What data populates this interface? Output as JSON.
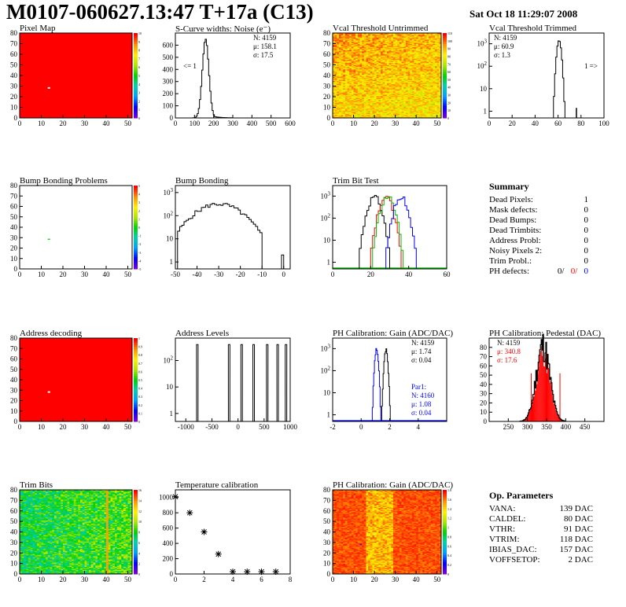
{
  "header": {
    "title": "M0107-060627.13:47 T+17a (C13)",
    "date": "Sat Oct 18 11:29:07 2008"
  },
  "colors": {
    "red": "#ff0000",
    "blue": "#0000ff",
    "green": "#00bb00",
    "black": "#000000"
  },
  "panels": [
    {
      "title": "Pixel Map",
      "chart_data": {
        "type": "heatmap",
        "xlim": [
          0,
          52
        ],
        "ylim": [
          0,
          80
        ],
        "z_range": [
          0,
          10
        ],
        "dominant_z": 10,
        "x_ticks": [
          0,
          10,
          20,
          30,
          40,
          50
        ],
        "y_ticks": [
          0,
          10,
          20,
          30,
          40,
          50,
          60,
          70,
          80
        ],
        "z_ticks": [
          0,
          1,
          2,
          3,
          4,
          5,
          6,
          7,
          8,
          9,
          10
        ],
        "dead_pixels": [
          {
            "x": 13,
            "y": 28
          }
        ]
      }
    },
    {
      "title": "S-Curve widths: Noise (e⁻)",
      "chart_data": {
        "type": "histogram",
        "xlim": [
          0,
          600
        ],
        "ylim": [
          0,
          700
        ],
        "x_ticks": [
          0,
          100,
          200,
          300,
          400,
          500,
          600
        ],
        "y_ticks": [
          0,
          100,
          200,
          300,
          400,
          500,
          600
        ],
        "stats": [
          "N: 4159",
          "μ: 158.1",
          "σ: 17.5"
        ],
        "side_label": "<= 1"
      }
    },
    {
      "title": "Vcal Threshold Untrimmed",
      "chart_data": {
        "type": "heatmap",
        "xlim": [
          0,
          52
        ],
        "ylim": [
          0,
          80
        ],
        "z_range": [
          0,
          110
        ],
        "x_ticks": [
          0,
          10,
          20,
          30,
          40,
          50
        ],
        "y_ticks": [
          0,
          10,
          20,
          30,
          40,
          50,
          60,
          70,
          80
        ],
        "z_ticks": [
          0,
          10,
          20,
          30,
          40,
          50,
          60,
          70,
          80,
          90,
          100,
          110
        ]
      }
    },
    {
      "title": "Vcal Threshold Trimmed",
      "chart_data": {
        "type": "histogram",
        "scale": "log",
        "xlim": [
          0,
          100
        ],
        "x_ticks": [
          0,
          20,
          40,
          60,
          80,
          100
        ],
        "y_ticks": [
          1,
          10,
          100,
          1000
        ],
        "stats": [
          "N: 4159",
          "μ: 60.9",
          "σ: 1.3"
        ],
        "side_label": "1 =>"
      }
    },
    {
      "title": "Bump Bonding Problems",
      "chart_data": {
        "type": "heatmap",
        "xlim": [
          0,
          52
        ],
        "ylim": [
          0,
          80
        ],
        "z_range": [
          -5,
          5
        ],
        "x_ticks": [
          0,
          10,
          20,
          30,
          40,
          50
        ],
        "y_ticks": [
          0,
          10,
          20,
          30,
          40,
          50,
          60,
          70,
          80
        ],
        "z_ticks": [
          -5,
          -4,
          -3,
          -2,
          -1,
          0,
          1,
          2,
          3,
          4,
          5
        ],
        "marked_pixels": [
          {
            "x": 13,
            "y": 28
          }
        ]
      }
    },
    {
      "title": "Bump Bonding",
      "chart_data": {
        "type": "histogram",
        "scale": "log",
        "xlim": [
          -50,
          3
        ],
        "x_ticks": [
          -50,
          -40,
          -30,
          -20,
          -10,
          0
        ],
        "y_ticks": [
          1,
          10,
          100,
          1000
        ]
      }
    },
    {
      "title": "Trim Bit Test",
      "chart_data": {
        "type": "histogram",
        "scale": "log",
        "xlim": [
          0,
          60
        ],
        "x_ticks": [
          0,
          20,
          40,
          60
        ],
        "y_ticks": [
          1,
          10,
          100,
          1000
        ],
        "series": [
          {
            "color": "black",
            "mean": 22
          },
          {
            "color": "red",
            "mean": 28
          },
          {
            "color": "green",
            "mean": 29
          },
          {
            "color": "blue",
            "mean": 36
          }
        ]
      }
    },
    {
      "title": "Address decoding",
      "chart_data": {
        "type": "heatmap",
        "xlim": [
          0,
          52
        ],
        "ylim": [
          0,
          80
        ],
        "z_range": [
          0,
          1
        ],
        "dominant_z": 1,
        "x_ticks": [
          0,
          10,
          20,
          30,
          40,
          50
        ],
        "y_ticks": [
          0,
          10,
          20,
          30,
          40,
          50,
          60,
          70,
          80
        ],
        "z_ticks": [
          0,
          0.1,
          0.2,
          0.3,
          0.4,
          0.5,
          0.6,
          0.7,
          0.8,
          0.9,
          1
        ],
        "dead_pixels": [
          {
            "x": 13,
            "y": 28
          }
        ]
      }
    },
    {
      "title": "Address Levels",
      "chart_data": {
        "type": "histogram",
        "scale": "log",
        "xlim": [
          -1200,
          1000
        ],
        "x_ticks": [
          -1000,
          -500,
          0,
          500,
          1000
        ],
        "y_ticks": [
          1,
          10,
          100
        ],
        "peaks": [
          -780,
          -170,
          70,
          300,
          560,
          760,
          920
        ]
      }
    },
    {
      "title": "PH Calibration: Gain (ADC/DAC)",
      "chart_data": {
        "type": "histogram",
        "scale": "log",
        "xlim": [
          -2,
          6
        ],
        "x_ticks": [
          -2,
          0,
          2,
          4
        ],
        "y_ticks": [
          1,
          10,
          100,
          1000
        ],
        "stats": [
          "N: 4159",
          "μ: 1.74",
          "σ: 0.04"
        ],
        "fit_stats": [
          "Par1:",
          "N: 4160",
          "μ: 1.08",
          "σ: 0.04"
        ]
      }
    },
    {
      "title": "PH Calibration: Pedestal (DAC)",
      "chart_data": {
        "type": "histogram",
        "xlim": [
          200,
          500
        ],
        "ylim": [
          0,
          90
        ],
        "x_ticks": [
          250,
          300,
          350,
          400,
          450
        ],
        "y_ticks": [
          0,
          10,
          20,
          30,
          40,
          50,
          60,
          70,
          80
        ],
        "stats": [
          "N: 4159",
          "μ: 340.8",
          "σ: 17.6"
        ]
      }
    },
    {
      "title": "Trim Bits",
      "chart_data": {
        "type": "heatmap",
        "xlim": [
          0,
          52
        ],
        "ylim": [
          0,
          80
        ],
        "z_range": [
          0,
          16
        ],
        "x_ticks": [
          0,
          10,
          20,
          30,
          40,
          50
        ],
        "y_ticks": [
          0,
          10,
          20,
          30,
          40,
          50,
          60,
          70,
          80
        ],
        "z_ticks": [
          0,
          2,
          4,
          6,
          8,
          10,
          12,
          14,
          16
        ]
      }
    },
    {
      "title": "Temperature calibration",
      "chart_data": {
        "type": "scatter",
        "xlim": [
          0,
          8
        ],
        "ylim": [
          0,
          1100
        ],
        "x_ticks": [
          0,
          2,
          4,
          6,
          8
        ],
        "y_ticks": [
          0,
          200,
          400,
          600,
          800,
          1000
        ],
        "x": [
          0,
          1,
          2,
          3,
          4,
          5,
          6,
          7
        ],
        "y": [
          1010,
          800,
          550,
          260,
          30,
          30,
          30,
          30
        ]
      }
    },
    {
      "title": "PH Calibration: Gain (ADC/DAC)",
      "chart_data": {
        "type": "heatmap",
        "xlim": [
          0,
          52
        ],
        "ylim": [
          0,
          80
        ],
        "z_range": [
          0,
          1.8
        ],
        "x_ticks": [
          0,
          10,
          20,
          30,
          40,
          50
        ],
        "y_ticks": [
          0,
          10,
          20,
          30,
          40,
          50,
          60,
          70,
          80
        ],
        "z_ticks": [
          0,
          0.2,
          0.4,
          0.6,
          0.8,
          1,
          1.2,
          1.4,
          1.6,
          1.8
        ]
      }
    }
  ],
  "summary": {
    "title": "Summary",
    "rows": [
      {
        "label": "Dead Pixels:",
        "value": "1"
      },
      {
        "label": "Mask defects:",
        "value": "0"
      },
      {
        "label": "Dead Bumps:",
        "value": "0"
      },
      {
        "label": "Dead Trimbits:",
        "value": "0"
      },
      {
        "label": "Address Probl:",
        "value": "0"
      },
      {
        "label": "Noisy Pixels 2:",
        "value": "0"
      },
      {
        "label": "Trim Probl.:",
        "value": "0"
      }
    ],
    "ph_label": "PH defects:",
    "ph_values": [
      "0/",
      "0/",
      "0"
    ]
  },
  "op_params": {
    "title": "Op. Parameters",
    "rows": [
      {
        "label": "VANA:",
        "value": "139 DAC"
      },
      {
        "label": "CALDEL:",
        "value": "80 DAC"
      },
      {
        "label": "VTHR:",
        "value": "91 DAC"
      },
      {
        "label": "VTRIM:",
        "value": "118 DAC"
      },
      {
        "label": "IBIAS_DAC:",
        "value": "157 DAC"
      },
      {
        "label": "VOFFSETOP:",
        "value": "2 DAC"
      }
    ]
  }
}
